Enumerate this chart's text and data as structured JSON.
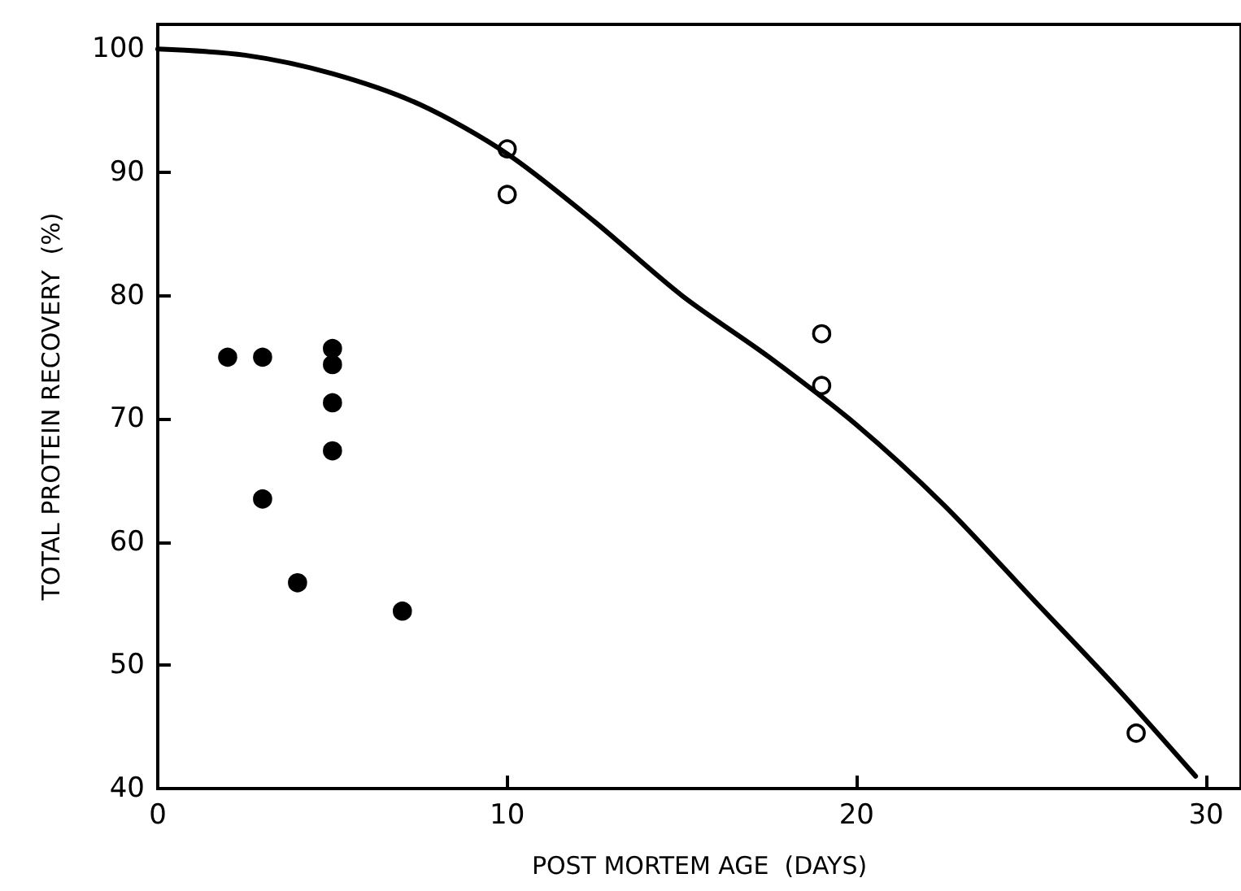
{
  "chart_data": {
    "type": "scatter",
    "xlabel": "POST MORTEM AGE  (DAYS)",
    "ylabel": "TOTAL PROTEIN RECOVERY  (%)",
    "xlim": [
      0,
      31
    ],
    "xticks": [
      0,
      10,
      20,
      30
    ],
    "ylim": [
      40,
      102
    ],
    "yticks": [
      40,
      50,
      60,
      70,
      80,
      90,
      100
    ],
    "grid": false,
    "marker": "circle",
    "series": [
      {
        "color": "#000000",
        "x": [
          2,
          3,
          3,
          4,
          5,
          5,
          5,
          5,
          7
        ],
        "values": [
          75,
          75,
          63.5,
          56.7,
          75.7,
          74.4,
          71.3,
          67.4,
          54.4
        ]
      },
      {
        "color": "#ffffff",
        "x": [
          10,
          10,
          19,
          19,
          28
        ],
        "values": [
          91.9,
          88.2,
          76.9,
          72.7,
          44.5
        ]
      },
      {
        "type": "line",
        "color": "#000000",
        "marker": "none",
        "x": [
          0,
          2.5,
          5,
          7.5,
          10,
          12.5,
          15,
          17.5,
          20,
          22.5,
          25,
          27.5,
          29.7
        ],
        "values": [
          100,
          99.5,
          98,
          95.5,
          91.5,
          86,
          80,
          75,
          69.5,
          63,
          55.5,
          48,
          41
        ]
      }
    ]
  }
}
